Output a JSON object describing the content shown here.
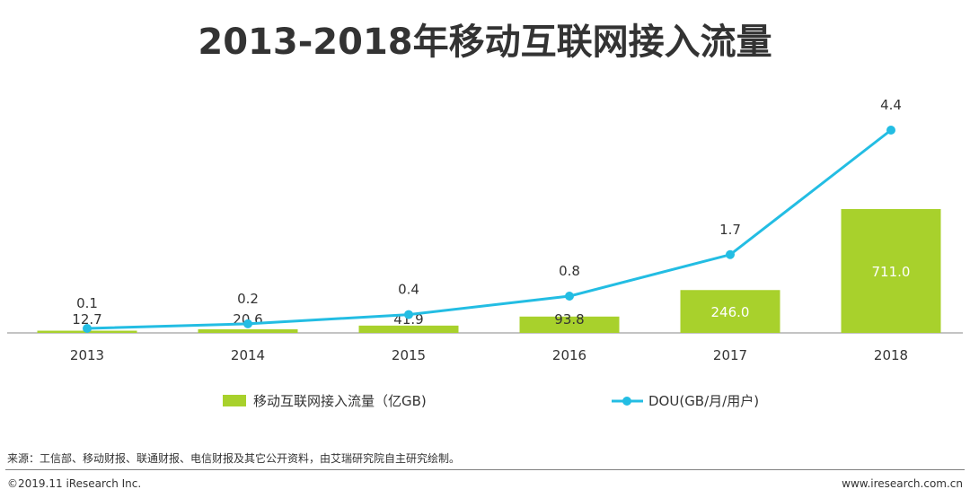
{
  "header": {
    "title": "2013-2018年移动互联网接入流量"
  },
  "chart_data": {
    "type": "bar",
    "categories": [
      "2013",
      "2014",
      "2015",
      "2016",
      "2017",
      "2018"
    ],
    "series": [
      {
        "name": "移动互联网接入流量（亿GB)",
        "type": "bar",
        "values": [
          12.7,
          20.6,
          41.9,
          93.8,
          246.0,
          711.0
        ],
        "labels": [
          "12.7",
          "20.6",
          "41.9",
          "93.8",
          "246.0",
          "711.0"
        ],
        "color": "#a8d12c",
        "ylim": [
          0,
          1000
        ]
      },
      {
        "name": "DOU(GB/月/用户)",
        "type": "line",
        "values": [
          0.1,
          0.2,
          0.4,
          0.8,
          1.7,
          4.4
        ],
        "labels": [
          "0.1",
          "0.2",
          "0.4",
          "0.8",
          "1.7",
          "4.4"
        ],
        "color": "#23bde3",
        "ylim": [
          0,
          5
        ]
      }
    ],
    "legend_position": "bottom",
    "grid": false
  },
  "footer": {
    "source": "来源：工信部、移动财报、联通财报、电信财报及其它公开资料，由艾瑞研究院自主研究绘制。",
    "copyright": "©2019.11 iResearch Inc.",
    "site": "www.iresearch.com.cn"
  }
}
